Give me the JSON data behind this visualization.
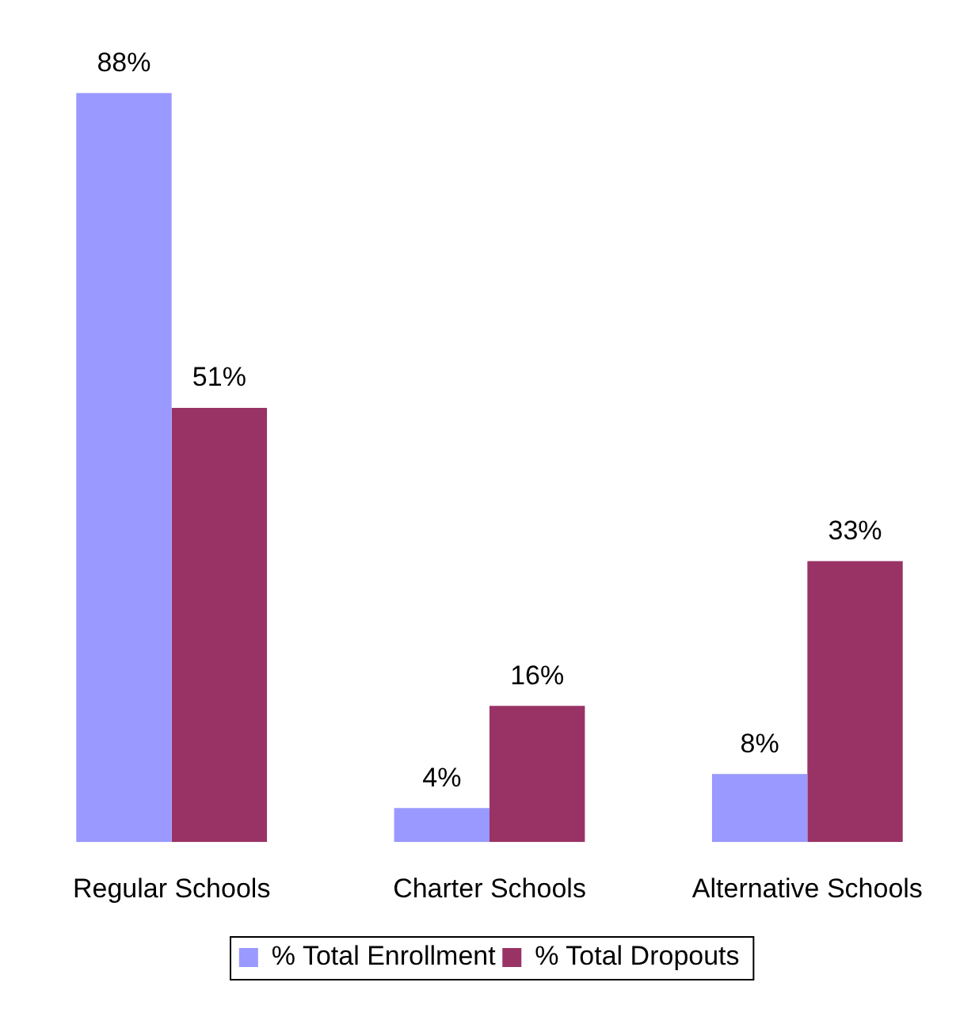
{
  "chart_data": {
    "type": "bar",
    "categories": [
      "Regular Schools",
      "Charter Schools",
      "Alternative Schools"
    ],
    "series": [
      {
        "name": "% Total Enrollment",
        "color": "#9999ff",
        "values": [
          88,
          4,
          8
        ],
        "value_labels": [
          "88%",
          "4%",
          "8%"
        ]
      },
      {
        "name": "% Total Dropouts",
        "color": "#993366",
        "values": [
          51,
          16,
          33
        ],
        "value_labels": [
          "51%",
          "16%",
          "33%"
        ]
      }
    ],
    "legend": "bottom",
    "grid": false
  }
}
